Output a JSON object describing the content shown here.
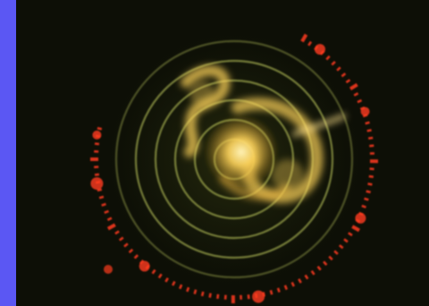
{
  "photo": {
    "subject": "radar-scope",
    "colors": {
      "side_bar": "#5b57f3",
      "background": "#0d0f06",
      "range_rings": "#b8c25a",
      "echo": "#ffd45a",
      "echo_core": "#fff3b8",
      "bezel_marks": "#ff3b1f"
    }
  }
}
